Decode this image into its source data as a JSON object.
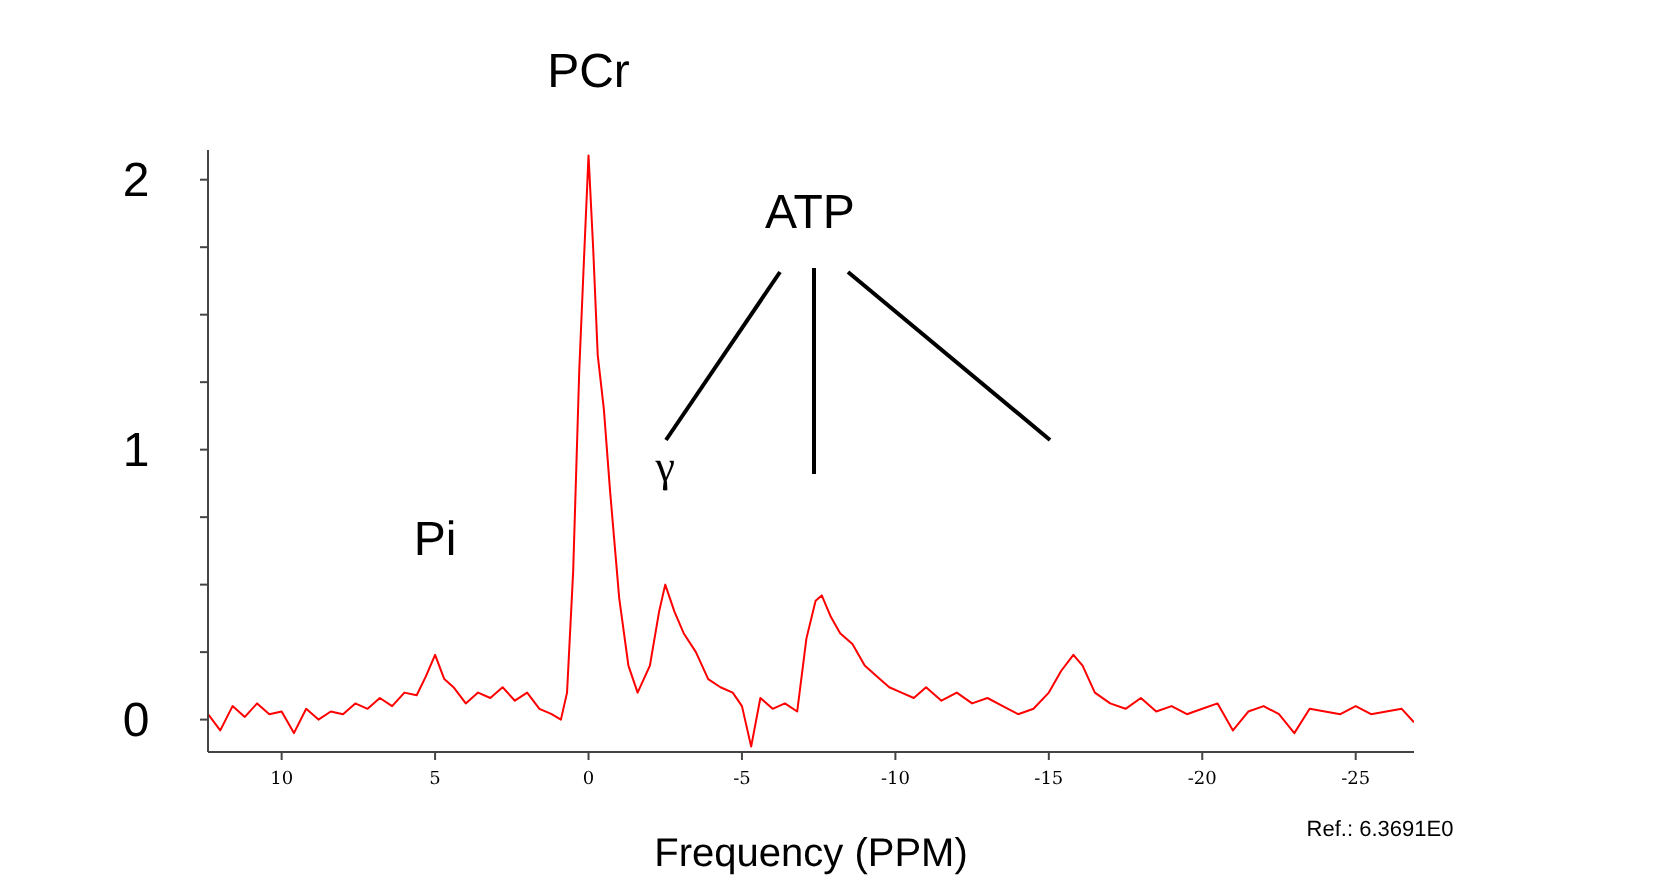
{
  "chart_data": {
    "type": "line",
    "xlabel": "Frequency (PPM)",
    "x": [
      12.4,
      12,
      11.6,
      11.2,
      10.8,
      10.4,
      10,
      9.6,
      9.2,
      8.8,
      8.4,
      8,
      7.6,
      7.2,
      6.8,
      6.4,
      6,
      5.6,
      5.3,
      5,
      4.7,
      4.4,
      4,
      3.6,
      3.2,
      2.8,
      2.4,
      2,
      1.6,
      1.2,
      0.9,
      0.7,
      0.5,
      0.3,
      0.15,
      0,
      -0.15,
      -0.3,
      -0.5,
      -0.7,
      -1,
      -1.3,
      -1.6,
      -2,
      -2.3,
      -2.5,
      -2.8,
      -3.1,
      -3.5,
      -3.9,
      -4.3,
      -4.7,
      -5,
      -5.3,
      -5.6,
      -6,
      -6.4,
      -6.8,
      -7.1,
      -7.4,
      -7.6,
      -7.9,
      -8.2,
      -8.6,
      -9,
      -9.4,
      -9.8,
      -10.2,
      -10.6,
      -11,
      -11.5,
      -12,
      -12.5,
      -13,
      -13.5,
      -14,
      -14.5,
      -15,
      -15.4,
      -15.8,
      -16.1,
      -16.5,
      -17,
      -17.5,
      -18,
      -18.5,
      -19,
      -19.5,
      -20,
      -20.5,
      -21,
      -21.5,
      -22,
      -22.5,
      -23,
      -23.5,
      -24,
      -24.5,
      -25,
      -25.5,
      -26,
      -26.5,
      -26.9
    ],
    "series": [
      {
        "color": "#ff0000",
        "values": [
          0.02,
          -0.04,
          0.05,
          0.01,
          0.06,
          0.02,
          0.03,
          -0.05,
          0.04,
          0.0,
          0.03,
          0.02,
          0.06,
          0.04,
          0.08,
          0.05,
          0.1,
          0.09,
          0.16,
          0.24,
          0.15,
          0.12,
          0.06,
          0.1,
          0.08,
          0.12,
          0.07,
          0.1,
          0.04,
          0.02,
          0.0,
          0.1,
          0.55,
          1.3,
          1.7,
          2.09,
          1.75,
          1.35,
          1.15,
          0.85,
          0.45,
          0.2,
          0.1,
          0.2,
          0.4,
          0.5,
          0.4,
          0.32,
          0.25,
          0.15,
          0.12,
          0.1,
          0.05,
          -0.1,
          0.08,
          0.04,
          0.06,
          0.03,
          0.3,
          0.44,
          0.46,
          0.38,
          0.32,
          0.28,
          0.2,
          0.16,
          0.12,
          0.1,
          0.08,
          0.12,
          0.07,
          0.1,
          0.06,
          0.08,
          0.05,
          0.02,
          0.04,
          0.1,
          0.18,
          0.24,
          0.2,
          0.1,
          0.06,
          0.04,
          0.08,
          0.03,
          0.05,
          0.02,
          0.04,
          0.06,
          -0.04,
          0.03,
          0.05,
          0.02,
          -0.05,
          0.04,
          0.03,
          0.02,
          0.05,
          0.02,
          0.03,
          0.04,
          -0.01
        ]
      }
    ],
    "xlim": [
      12.4,
      -26.9
    ],
    "xticks": [
      10,
      5,
      0,
      -5,
      -10,
      -15,
      -20,
      -25
    ],
    "ylim": [
      -0.12,
      2.11
    ],
    "yticks": [
      0,
      {
        "value": 0.25,
        "label": null
      },
      {
        "value": 0.5,
        "label": null
      },
      {
        "value": 0.75,
        "label": null
      },
      1,
      {
        "value": 1.25,
        "label": null
      },
      {
        "value": 1.5,
        "label": null
      },
      {
        "value": 1.75,
        "label": null
      },
      2
    ],
    "grid": false,
    "legend": false,
    "marker": "none",
    "line_style": "solid",
    "annotations": [
      {
        "text": "PCr",
        "x": 0,
        "y": 2.09
      },
      {
        "text": "Pi",
        "x": 5,
        "y": 0.24
      },
      {
        "text": "γ",
        "x": -2.5,
        "y": 0.5
      },
      "ATP",
      "Ref.: 6.3691E0"
    ]
  }
}
